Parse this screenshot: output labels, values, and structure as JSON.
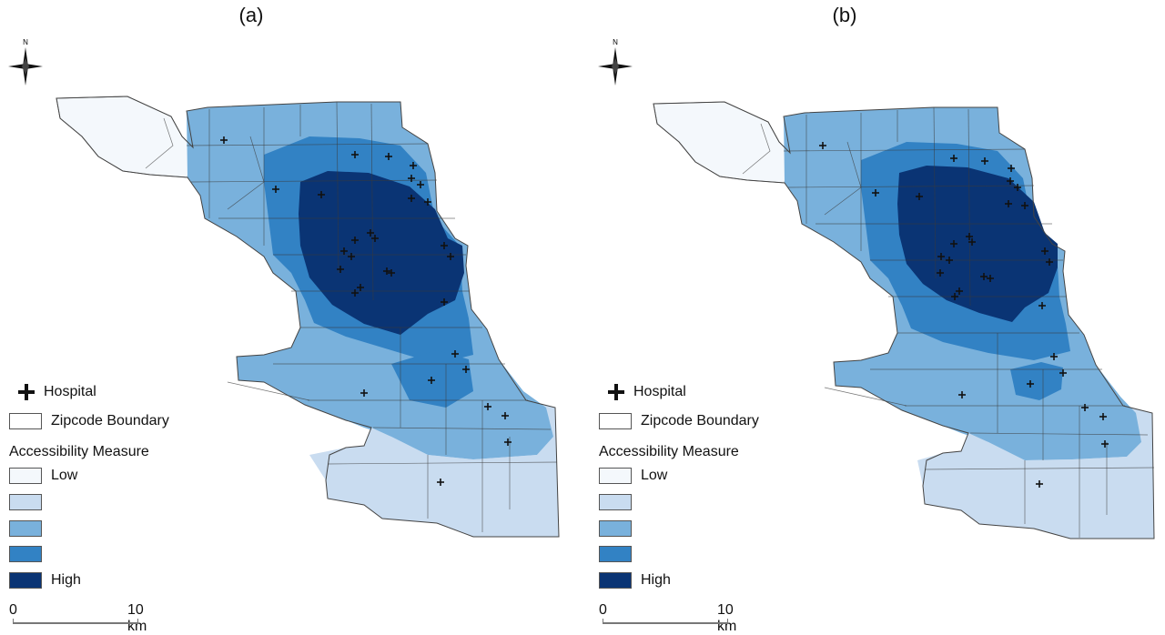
{
  "panels": [
    {
      "id": "a",
      "label": "(a)"
    },
    {
      "id": "b",
      "label": "(b)"
    }
  ],
  "compass": {
    "north_label": "N"
  },
  "legend": {
    "hospital_label": "Hospital",
    "boundary_label": "Zipcode Boundary",
    "measure_title": "Accessibility Measure",
    "classes": [
      {
        "label": "Low",
        "color": "#f4f8fc"
      },
      {
        "label": "",
        "color": "#c9dcf0"
      },
      {
        "label": "",
        "color": "#79b1dc"
      },
      {
        "label": "",
        "color": "#3282c4"
      },
      {
        "label": "High",
        "color": "#0a3474"
      }
    ]
  },
  "scale": {
    "start_label": "0",
    "end_label": "10 km"
  },
  "icons": {
    "hospital": "plus-icon",
    "north_arrow": "compass-star-icon"
  }
}
